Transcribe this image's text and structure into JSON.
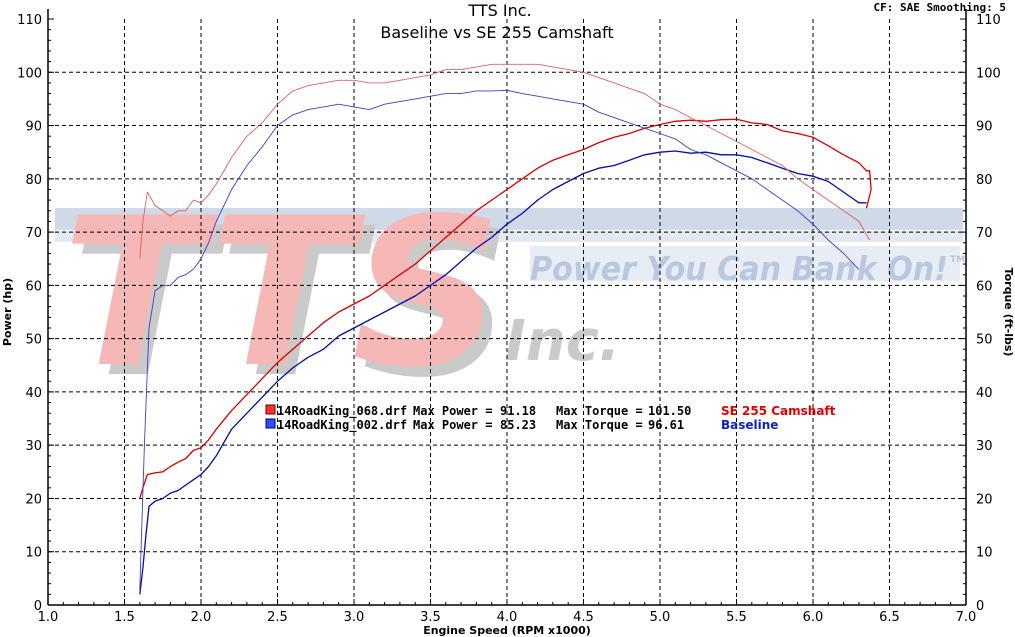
{
  "chart_data": {
    "type": "line",
    "title": "TTS Inc.",
    "subtitle": "Baseline vs SE 255 Camshaft",
    "settings": "CF: SAE  Smoothing: 5",
    "xlabel": "Engine Speed (RPM x1000)",
    "ylabel": "Power (hp)",
    "y2label": "Torque (ft-lbs)",
    "xlim": [
      1.0,
      7.0
    ],
    "ylim": [
      0,
      110
    ],
    "y2lim": [
      0,
      110
    ],
    "grid": true,
    "x_ticks": [
      "1.0",
      "1.5",
      "2.0",
      "2.5",
      "3.0",
      "3.5",
      "4.0",
      "4.5",
      "5.0",
      "5.5",
      "6.0",
      "6.5",
      "7.0"
    ],
    "y_ticks": [
      "0",
      "10",
      "20",
      "30",
      "40",
      "50",
      "60",
      "70",
      "80",
      "90",
      "100",
      "110"
    ],
    "watermark": {
      "main": "TTS",
      "sub": "Inc.",
      "slogan": "Power You Can Bank On!",
      "tm": "TM"
    },
    "legend": [
      {
        "file": "14RoadKing_068.drf",
        "power_label": "Max Power =",
        "max_power": "91.18",
        "torque_label": "Max Torque =",
        "max_torque": "101.50",
        "name": "SE 255 Camshaft",
        "color": "#e00000"
      },
      {
        "file": "14RoadKing_002.drf",
        "power_label": "Max Power =",
        "max_power": "85.23",
        "torque_label": "Max Torque =",
        "max_torque": "96.61",
        "name": "Baseline",
        "color": "#1020c0"
      }
    ],
    "series": [
      {
        "name": "SE 255 Camshaft",
        "measure": "Power (hp)",
        "color": "#d80000",
        "width": 1.3,
        "points": [
          [
            1.6,
            20
          ],
          [
            1.62,
            22
          ],
          [
            1.65,
            24.5
          ],
          [
            1.7,
            24.8
          ],
          [
            1.75,
            25
          ],
          [
            1.8,
            26
          ],
          [
            1.85,
            26.8
          ],
          [
            1.9,
            27.5
          ],
          [
            1.95,
            29
          ],
          [
            2.0,
            29.5
          ],
          [
            2.05,
            31
          ],
          [
            2.1,
            33
          ],
          [
            2.2,
            36.5
          ],
          [
            2.3,
            39.5
          ],
          [
            2.4,
            42.5
          ],
          [
            2.5,
            45.5
          ],
          [
            2.6,
            48
          ],
          [
            2.7,
            50.5
          ],
          [
            2.8,
            53
          ],
          [
            2.9,
            55
          ],
          [
            3.0,
            56.5
          ],
          [
            3.1,
            58
          ],
          [
            3.2,
            60
          ],
          [
            3.3,
            62
          ],
          [
            3.4,
            64
          ],
          [
            3.5,
            66.5
          ],
          [
            3.6,
            69
          ],
          [
            3.7,
            71.5
          ],
          [
            3.8,
            74
          ],
          [
            3.9,
            76
          ],
          [
            4.0,
            78
          ],
          [
            4.1,
            80
          ],
          [
            4.2,
            82
          ],
          [
            4.3,
            83.5
          ],
          [
            4.4,
            84.5
          ],
          [
            4.5,
            85.5
          ],
          [
            4.6,
            86.8
          ],
          [
            4.7,
            87.8
          ],
          [
            4.8,
            88.5
          ],
          [
            4.9,
            89.5
          ],
          [
            5.0,
            90.2
          ],
          [
            5.1,
            90.8
          ],
          [
            5.2,
            91
          ],
          [
            5.3,
            90.8
          ],
          [
            5.4,
            91.1
          ],
          [
            5.5,
            91.18
          ],
          [
            5.6,
            90.5
          ],
          [
            5.7,
            90.2
          ],
          [
            5.8,
            89
          ],
          [
            5.9,
            88.5
          ],
          [
            6.0,
            87.8
          ],
          [
            6.1,
            86.2
          ],
          [
            6.2,
            84.5
          ],
          [
            6.3,
            83
          ],
          [
            6.35,
            81.5
          ],
          [
            6.37,
            81.5
          ],
          [
            6.38,
            78
          ],
          [
            6.35,
            74.5
          ]
        ]
      },
      {
        "name": "Baseline",
        "measure": "Power (hp)",
        "color": "#0010a0",
        "width": 1.3,
        "points": [
          [
            1.6,
            2
          ],
          [
            1.62,
            7
          ],
          [
            1.64,
            13
          ],
          [
            1.66,
            18.5
          ],
          [
            1.7,
            19.5
          ],
          [
            1.75,
            20
          ],
          [
            1.8,
            21
          ],
          [
            1.85,
            21.5
          ],
          [
            1.9,
            22.5
          ],
          [
            1.95,
            23.5
          ],
          [
            2.0,
            24.5
          ],
          [
            2.05,
            26
          ],
          [
            2.1,
            28
          ],
          [
            2.15,
            30.5
          ],
          [
            2.2,
            33
          ],
          [
            2.3,
            36
          ],
          [
            2.4,
            39
          ],
          [
            2.5,
            42
          ],
          [
            2.6,
            44.5
          ],
          [
            2.7,
            46.5
          ],
          [
            2.8,
            48
          ],
          [
            2.9,
            50.5
          ],
          [
            3.0,
            52
          ],
          [
            3.1,
            53.5
          ],
          [
            3.2,
            55
          ],
          [
            3.3,
            56.5
          ],
          [
            3.4,
            58
          ],
          [
            3.5,
            60
          ],
          [
            3.6,
            62
          ],
          [
            3.7,
            64.5
          ],
          [
            3.8,
            67
          ],
          [
            3.9,
            69
          ],
          [
            4.0,
            71.5
          ],
          [
            4.1,
            73.5
          ],
          [
            4.2,
            76
          ],
          [
            4.3,
            78
          ],
          [
            4.4,
            79.5
          ],
          [
            4.5,
            81
          ],
          [
            4.6,
            82
          ],
          [
            4.7,
            82.5
          ],
          [
            4.8,
            83.5
          ],
          [
            4.9,
            84.5
          ],
          [
            5.0,
            85
          ],
          [
            5.1,
            85.23
          ],
          [
            5.2,
            84.8
          ],
          [
            5.3,
            85
          ],
          [
            5.4,
            84.5
          ],
          [
            5.5,
            84.5
          ],
          [
            5.6,
            84
          ],
          [
            5.7,
            83
          ],
          [
            5.8,
            82
          ],
          [
            5.9,
            81
          ],
          [
            6.0,
            80.5
          ],
          [
            6.1,
            79.5
          ],
          [
            6.2,
            77.5
          ],
          [
            6.25,
            76.5
          ],
          [
            6.3,
            75.5
          ],
          [
            6.35,
            75.5
          ]
        ]
      },
      {
        "name": "SE 255 Camshaft",
        "measure": "Torque (ft-lbs)",
        "color": "#e06060",
        "width": 0.9,
        "points": [
          [
            1.6,
            65
          ],
          [
            1.62,
            72
          ],
          [
            1.65,
            77.5
          ],
          [
            1.7,
            75
          ],
          [
            1.75,
            74
          ],
          [
            1.8,
            73
          ],
          [
            1.85,
            74
          ],
          [
            1.9,
            74
          ],
          [
            1.95,
            76
          ],
          [
            2.0,
            75.5
          ],
          [
            2.05,
            77
          ],
          [
            2.1,
            79
          ],
          [
            2.2,
            84
          ],
          [
            2.3,
            88
          ],
          [
            2.4,
            90.5
          ],
          [
            2.5,
            94
          ],
          [
            2.6,
            96.5
          ],
          [
            2.7,
            97.5
          ],
          [
            2.8,
            98
          ],
          [
            2.9,
            98.5
          ],
          [
            3.0,
            98.5
          ],
          [
            3.1,
            98
          ],
          [
            3.2,
            98
          ],
          [
            3.3,
            98.5
          ],
          [
            3.4,
            99
          ],
          [
            3.5,
            99.5
          ],
          [
            3.6,
            100.5
          ],
          [
            3.7,
            100.5
          ],
          [
            3.8,
            101
          ],
          [
            3.9,
            101.5
          ],
          [
            4.0,
            101.5
          ],
          [
            4.1,
            101.5
          ],
          [
            4.2,
            101.5
          ],
          [
            4.3,
            101
          ],
          [
            4.4,
            100.5
          ],
          [
            4.5,
            100
          ],
          [
            4.6,
            99
          ],
          [
            4.7,
            98
          ],
          [
            4.8,
            97
          ],
          [
            4.9,
            96
          ],
          [
            5.0,
            94
          ],
          [
            5.1,
            93
          ],
          [
            5.2,
            91.5
          ],
          [
            5.3,
            90
          ],
          [
            5.4,
            88.5
          ],
          [
            5.5,
            87
          ],
          [
            5.6,
            85.5
          ],
          [
            5.7,
            84
          ],
          [
            5.8,
            82.5
          ],
          [
            5.9,
            80
          ],
          [
            6.0,
            78
          ],
          [
            6.1,
            76
          ],
          [
            6.2,
            74
          ],
          [
            6.3,
            72
          ],
          [
            6.37,
            68.5
          ]
        ]
      },
      {
        "name": "Baseline",
        "measure": "Torque (ft-lbs)",
        "color": "#4040c0",
        "width": 0.9,
        "points": [
          [
            1.6,
            3
          ],
          [
            1.63,
            30
          ],
          [
            1.66,
            52
          ],
          [
            1.7,
            59
          ],
          [
            1.75,
            60
          ],
          [
            1.8,
            60
          ],
          [
            1.85,
            61.5
          ],
          [
            1.9,
            62
          ],
          [
            1.95,
            63
          ],
          [
            2.0,
            65
          ],
          [
            2.05,
            68
          ],
          [
            2.1,
            72
          ],
          [
            2.2,
            78
          ],
          [
            2.3,
            82.5
          ],
          [
            2.4,
            86
          ],
          [
            2.5,
            90
          ],
          [
            2.6,
            92
          ],
          [
            2.7,
            93
          ],
          [
            2.8,
            93.5
          ],
          [
            2.9,
            94
          ],
          [
            3.0,
            93.5
          ],
          [
            3.1,
            93
          ],
          [
            3.2,
            94
          ],
          [
            3.3,
            94.5
          ],
          [
            3.4,
            95
          ],
          [
            3.5,
            95.5
          ],
          [
            3.6,
            96
          ],
          [
            3.7,
            96
          ],
          [
            3.8,
            96.5
          ],
          [
            3.9,
            96.5
          ],
          [
            4.0,
            96.61
          ],
          [
            4.1,
            96
          ],
          [
            4.2,
            95.5
          ],
          [
            4.3,
            95
          ],
          [
            4.4,
            94.5
          ],
          [
            4.5,
            94
          ],
          [
            4.6,
            92.5
          ],
          [
            4.7,
            91.5
          ],
          [
            4.8,
            90.5
          ],
          [
            4.9,
            89.5
          ],
          [
            5.0,
            88.5
          ],
          [
            5.1,
            87.5
          ],
          [
            5.2,
            85.5
          ],
          [
            5.3,
            84.5
          ],
          [
            5.4,
            83
          ],
          [
            5.5,
            81.5
          ],
          [
            5.6,
            80
          ],
          [
            5.7,
            78
          ],
          [
            5.8,
            76
          ],
          [
            5.9,
            74
          ],
          [
            6.0,
            71.5
          ],
          [
            6.1,
            68.5
          ],
          [
            6.2,
            66
          ],
          [
            6.3,
            63
          ]
        ]
      }
    ]
  }
}
